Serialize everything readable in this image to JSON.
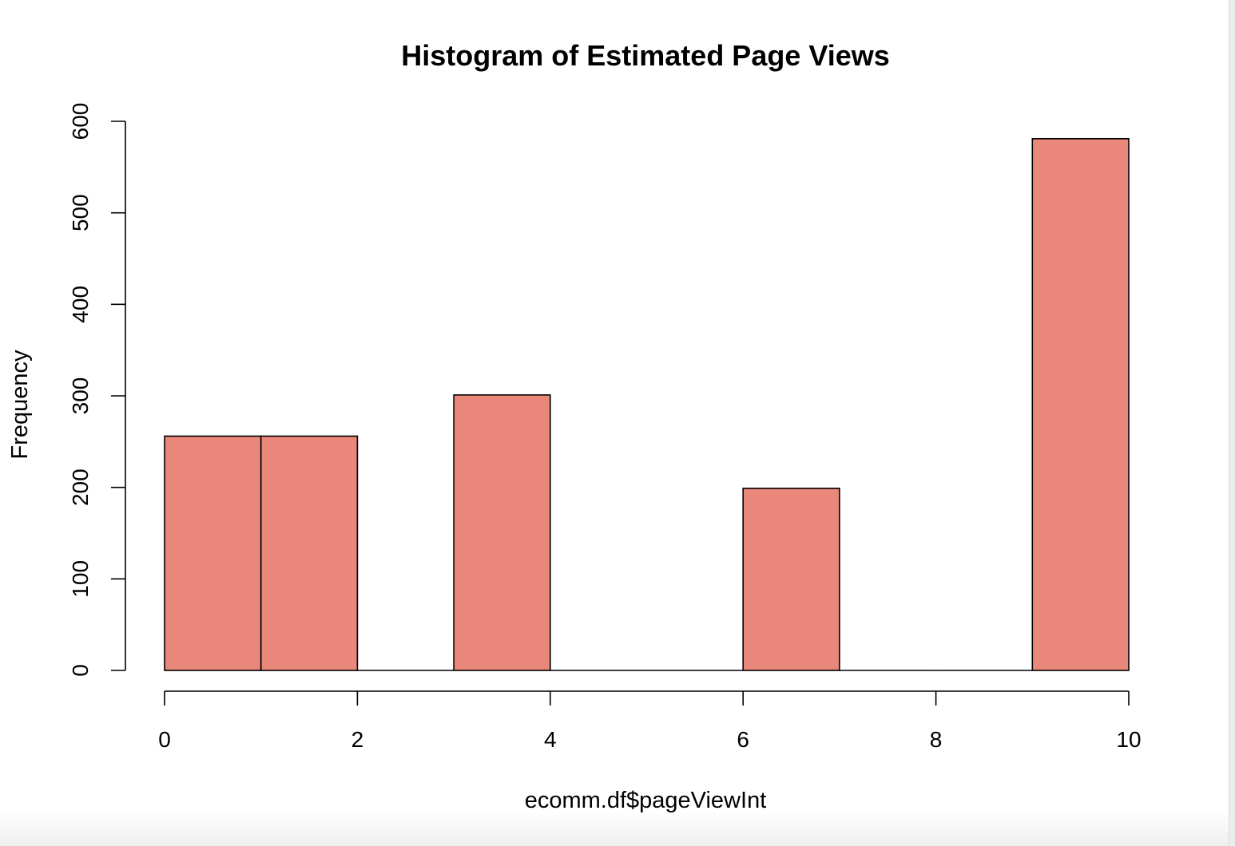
{
  "chart_data": {
    "type": "bar",
    "title": "Histogram of Estimated Page Views",
    "xlabel": "ecomm.df$pageViewInt",
    "ylabel": "Frequency",
    "bins": [
      {
        "start": 0,
        "end": 1,
        "value": 256
      },
      {
        "start": 1,
        "end": 2,
        "value": 256
      },
      {
        "start": 2,
        "end": 3,
        "value": 0
      },
      {
        "start": 3,
        "end": 4,
        "value": 301
      },
      {
        "start": 4,
        "end": 5,
        "value": 0
      },
      {
        "start": 5,
        "end": 6,
        "value": 0
      },
      {
        "start": 6,
        "end": 7,
        "value": 199
      },
      {
        "start": 7,
        "end": 8,
        "value": 0
      },
      {
        "start": 8,
        "end": 9,
        "value": 0
      },
      {
        "start": 9,
        "end": 10,
        "value": 581
      }
    ],
    "xlim": [
      0,
      10
    ],
    "ylim": [
      0,
      600
    ],
    "xticks": [
      "0",
      "2",
      "4",
      "6",
      "8",
      "10"
    ],
    "yticks": [
      "0",
      "100",
      "200",
      "300",
      "400",
      "500",
      "600"
    ],
    "grid": false,
    "bar_color": "#e9877a",
    "edge_color": "#000000"
  }
}
